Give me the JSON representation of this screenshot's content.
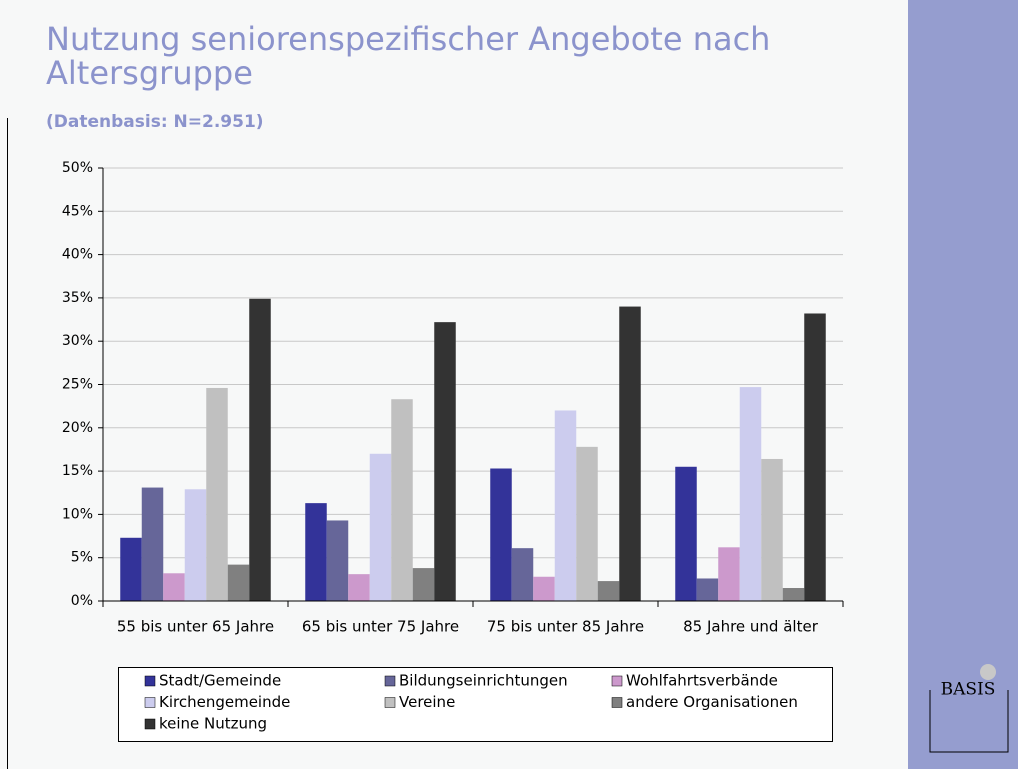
{
  "chart_data": {
    "type": "bar",
    "title": "Nutzung seniorenspezifischer Angebote nach Altersgruppe",
    "subtitle": "(Datenbasis: N=2.951)",
    "categories": [
      "55 bis unter 65 Jahre",
      "65 bis unter 75 Jahre",
      "75 bis unter 85 Jahre",
      "85 Jahre und älter"
    ],
    "series": [
      {
        "name": "Stadt/Gemeinde",
        "color": "#333399",
        "values": [
          7.3,
          11.3,
          15.3,
          15.5
        ]
      },
      {
        "name": "Bildungseinrichtungen",
        "color": "#666699",
        "values": [
          13.1,
          9.3,
          6.1,
          2.6
        ]
      },
      {
        "name": "Wohlfahrtsverbände",
        "color": "#cc99cc",
        "values": [
          3.2,
          3.1,
          2.8,
          6.2
        ]
      },
      {
        "name": "Kirchengemeinde",
        "color": "#ccccee",
        "values": [
          12.9,
          17.0,
          22.0,
          24.7
        ]
      },
      {
        "name": "Vereine",
        "color": "#c0c0c0",
        "values": [
          24.6,
          23.3,
          17.8,
          16.4
        ]
      },
      {
        "name": "andere Organisationen",
        "color": "#808080",
        "values": [
          4.2,
          3.8,
          2.3,
          1.5
        ]
      },
      {
        "name": "keine Nutzung",
        "color": "#333333",
        "values": [
          34.9,
          32.2,
          34.0,
          33.2
        ]
      }
    ],
    "ylim": [
      0,
      50
    ],
    "yticks": [
      {
        "value": 0,
        "label": "0%"
      },
      {
        "value": 5,
        "label": "5%"
      },
      {
        "value": 10,
        "label": "10%"
      },
      {
        "value": 15,
        "label": "15%"
      },
      {
        "value": 20,
        "label": "20%"
      },
      {
        "value": 25,
        "label": "25%"
      },
      {
        "value": 30,
        "label": "30%"
      },
      {
        "value": 35,
        "label": "35%"
      },
      {
        "value": 40,
        "label": "40%"
      },
      {
        "value": 45,
        "label": "45%"
      },
      {
        "value": 50,
        "label": "50%"
      }
    ],
    "grid": true,
    "legend": "bottom"
  },
  "logo": "BASIS"
}
